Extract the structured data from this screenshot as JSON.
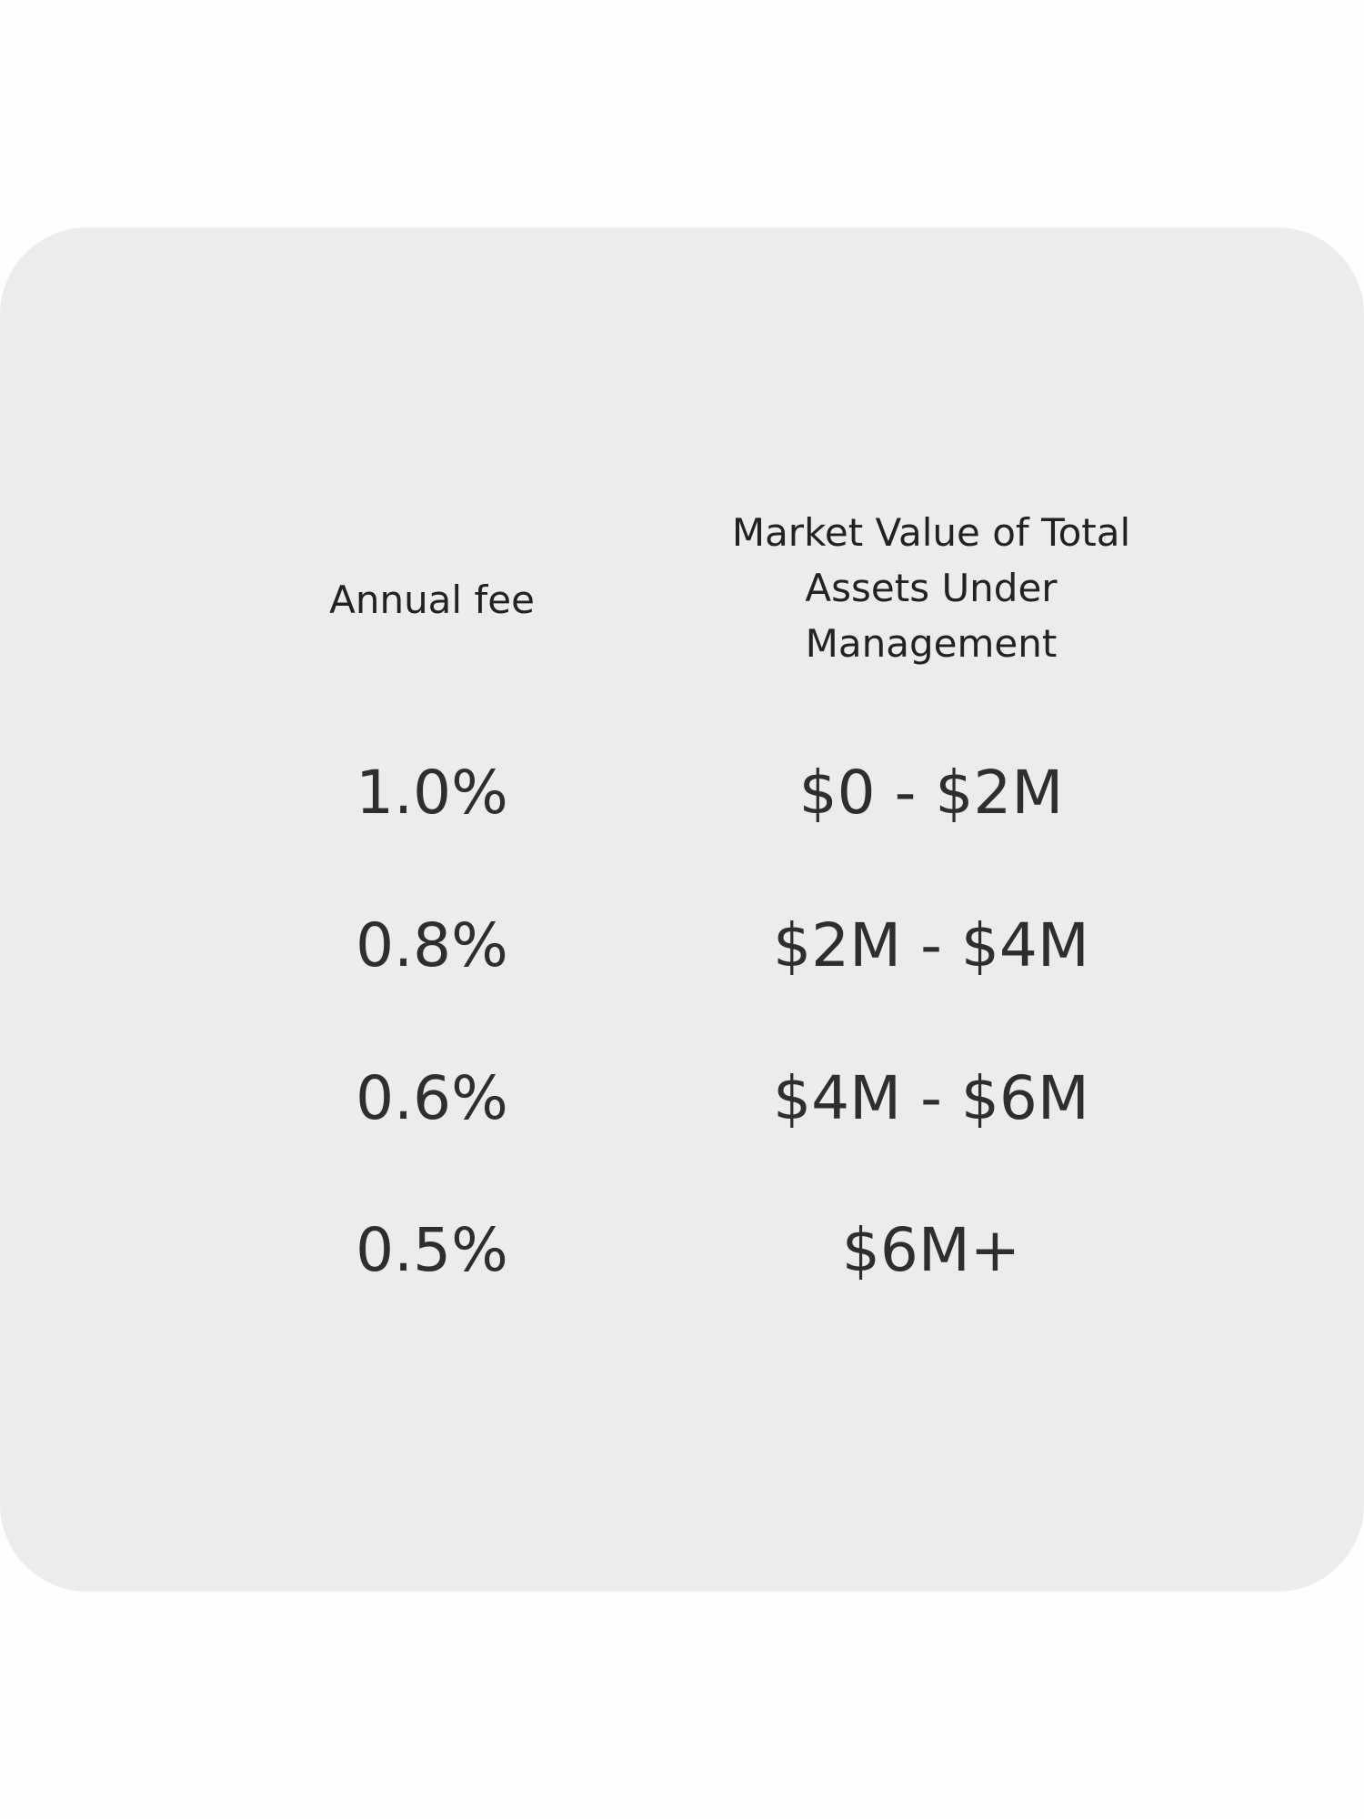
{
  "table": {
    "headers": [
      "Annual fee",
      "Market Value of Total Assets Under Management"
    ],
    "rows": [
      [
        "1.0%",
        "$0 - $2M"
      ],
      [
        "0.8%",
        "$2M - $4M"
      ],
      [
        "0.6%",
        "$4M - $6M"
      ],
      [
        "0.5%",
        "$6M+"
      ]
    ]
  }
}
